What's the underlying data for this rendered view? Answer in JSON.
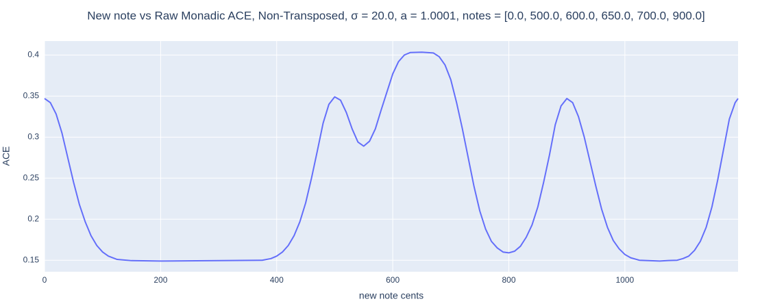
{
  "chart_data": {
    "type": "line",
    "title": "New note vs Raw Monadic ACE, Non-Transposed, σ = 20.0, a = 1.0001, notes = [0.0, 500.0, 600.0, 650.0, 700.0, 900.0]",
    "x_label": "new note cents",
    "y_label": "ACE",
    "x": [
      0,
      10,
      20,
      30,
      40,
      50,
      60,
      70,
      80,
      90,
      100,
      110,
      125,
      150,
      200,
      300,
      375,
      390,
      400,
      410,
      420,
      430,
      440,
      450,
      460,
      470,
      480,
      490,
      500,
      510,
      520,
      530,
      540,
      550,
      560,
      570,
      580,
      590,
      600,
      610,
      620,
      630,
      650,
      670,
      680,
      690,
      700,
      710,
      720,
      730,
      740,
      750,
      760,
      770,
      780,
      790,
      800,
      810,
      820,
      830,
      840,
      850,
      860,
      870,
      880,
      890,
      900,
      910,
      920,
      930,
      940,
      950,
      960,
      970,
      980,
      990,
      1000,
      1010,
      1025,
      1060,
      1075,
      1090,
      1100,
      1110,
      1120,
      1130,
      1140,
      1150,
      1160,
      1170,
      1180,
      1190,
      1195
    ],
    "series": [
      {
        "color": "#636efa",
        "values": [
          0.347,
          0.342,
          0.328,
          0.305,
          0.275,
          0.245,
          0.218,
          0.197,
          0.18,
          0.168,
          0.16,
          0.155,
          0.151,
          0.1495,
          0.149,
          0.1495,
          0.15,
          0.152,
          0.155,
          0.16,
          0.168,
          0.18,
          0.197,
          0.22,
          0.25,
          0.283,
          0.317,
          0.34,
          0.349,
          0.345,
          0.33,
          0.31,
          0.294,
          0.289,
          0.295,
          0.31,
          0.333,
          0.355,
          0.377,
          0.392,
          0.4,
          0.403,
          0.4035,
          0.4025,
          0.398,
          0.388,
          0.37,
          0.342,
          0.31,
          0.275,
          0.24,
          0.21,
          0.188,
          0.173,
          0.165,
          0.16,
          0.159,
          0.161,
          0.167,
          0.178,
          0.193,
          0.215,
          0.245,
          0.278,
          0.315,
          0.338,
          0.347,
          0.342,
          0.325,
          0.3,
          0.27,
          0.24,
          0.212,
          0.19,
          0.174,
          0.164,
          0.157,
          0.153,
          0.15,
          0.149,
          0.1497,
          0.15,
          0.152,
          0.155,
          0.162,
          0.173,
          0.19,
          0.215,
          0.248,
          0.285,
          0.322,
          0.342,
          0.347
        ]
      }
    ],
    "xlim": [
      0,
      1195
    ],
    "xticks": [
      0,
      200,
      400,
      600,
      800,
      1000
    ],
    "ylim": [
      0.136,
      0.417
    ],
    "yticks": [
      0.15,
      0.2,
      0.25,
      0.3,
      0.35,
      0.4
    ],
    "grid": true
  }
}
